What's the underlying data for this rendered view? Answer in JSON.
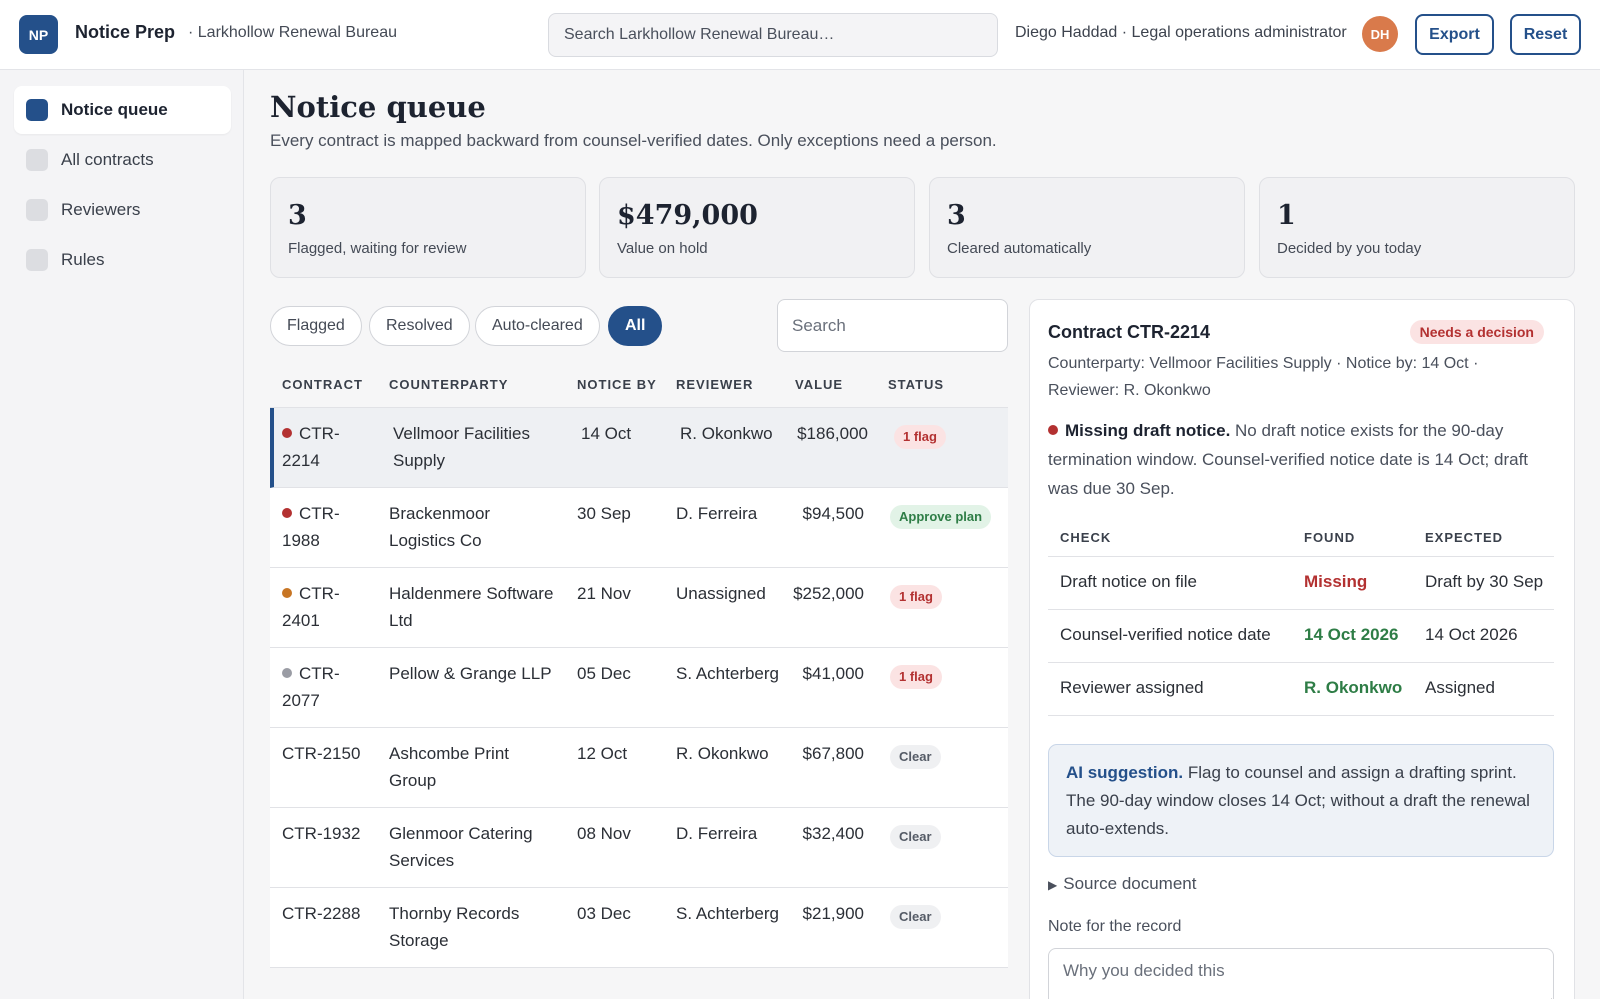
{
  "header": {
    "logo_initials": "NP",
    "app_name": "Notice Prep",
    "org_name": "· Larkhollow Renewal Bureau",
    "search_placeholder": "Search Larkhollow Renewal Bureau…",
    "user_line": "Diego Haddad · Legal operations administrator",
    "avatar_initials": "DH",
    "export_label": "Export",
    "reset_label": "Reset"
  },
  "sidebar": {
    "items": [
      {
        "label": "Notice queue",
        "active": true
      },
      {
        "label": "All contracts",
        "active": false
      },
      {
        "label": "Reviewers",
        "active": false
      },
      {
        "label": "Rules",
        "active": false
      }
    ]
  },
  "main": {
    "title": "Notice queue",
    "subtitle": "Every contract is mapped backward from counsel-verified dates. Only exceptions need a person.",
    "stats": [
      {
        "value": "3",
        "label": "Flagged, waiting for review"
      },
      {
        "value": "$479,000",
        "label": "Value on hold"
      },
      {
        "value": "3",
        "label": "Cleared automatically"
      },
      {
        "value": "1",
        "label": "Decided by you today"
      }
    ],
    "filters": [
      {
        "label": "Flagged",
        "active": false
      },
      {
        "label": "Resolved",
        "active": false
      },
      {
        "label": "Auto-cleared",
        "active": false
      },
      {
        "label": "All",
        "active": true
      }
    ],
    "table_search_placeholder": "Search"
  },
  "table": {
    "columns": [
      "Contract",
      "Counterparty",
      "Notice by",
      "Reviewer",
      "Value",
      "Status"
    ],
    "rows": [
      {
        "contract": "CTR-2214",
        "dot": "#b33131",
        "counterparty": "Vellmoor Facilities Supply",
        "notice": "14 Oct",
        "reviewer": "R. Okonkwo",
        "value": "$186,000",
        "status": "1 flag",
        "status_type": "flag",
        "selected": true
      },
      {
        "contract": "CTR-1988",
        "dot": "#b33131",
        "counterparty": "Brackenmoor Logistics Co",
        "notice": "30 Sep",
        "reviewer": "D. Ferreira",
        "value": "$94,500",
        "status": "Approve plan",
        "status_type": "approve",
        "selected": false
      },
      {
        "contract": "CTR-2401",
        "dot": "#c77524",
        "counterparty": "Haldenmere Software Ltd",
        "notice": "21 Nov",
        "reviewer": "Unassigned",
        "value": "$252,000",
        "status": "1 flag",
        "status_type": "flag",
        "selected": false
      },
      {
        "contract": "CTR-2077",
        "dot": "#9a9ca4",
        "counterparty": "Pellow & Grange LLP",
        "notice": "05 Dec",
        "reviewer": "S. Achterberg",
        "value": "$41,000",
        "status": "1 flag",
        "status_type": "flag",
        "selected": false
      },
      {
        "contract": "CTR-2150",
        "dot": "",
        "counterparty": "Ashcombe Print Group",
        "notice": "12 Oct",
        "reviewer": "R. Okonkwo",
        "value": "$67,800",
        "status": "Clear",
        "status_type": "clear",
        "selected": false
      },
      {
        "contract": "CTR-1932",
        "dot": "",
        "counterparty": "Glenmoor Catering Services",
        "notice": "08 Nov",
        "reviewer": "D. Ferreira",
        "value": "$32,400",
        "status": "Clear",
        "status_type": "clear",
        "selected": false
      },
      {
        "contract": "CTR-2288",
        "dot": "",
        "counterparty": "Thornby Records Storage",
        "notice": "03 Dec",
        "reviewer": "S. Achterberg",
        "value": "$21,900",
        "status": "Clear",
        "status_type": "clear",
        "selected": false
      }
    ]
  },
  "detail": {
    "title": "Contract CTR-2214",
    "badge": "Needs a decision",
    "meta": "Counterparty: Vellmoor Facilities Supply · Notice by: 14 Oct · Reviewer: R. Okonkwo",
    "issue_title": "Missing draft notice.",
    "issue_text": " No draft notice exists for the 90-day termination window. Counsel-verified notice date is 14 Oct; draft was due 30 Sep.",
    "issue_dot_color": "#b33131",
    "check_columns": [
      "CHECK",
      "FOUND",
      "EXPECTED"
    ],
    "checks": [
      {
        "check": "Draft notice on file",
        "found": "Missing",
        "found_ok": false,
        "expected": "Draft by 30 Sep"
      },
      {
        "check": "Counsel-verified notice date",
        "found": "14 Oct 2026",
        "found_ok": true,
        "expected": "14 Oct 2026"
      },
      {
        "check": "Reviewer assigned",
        "found": "R. Okonkwo",
        "found_ok": true,
        "expected": "Assigned"
      }
    ],
    "ai_label": "AI suggestion.",
    "ai_text": " Flag to counsel and assign a drafting sprint. The 90-day window closes 14 Oct; without a draft the renewal auto-extends.",
    "source_label": "Source document",
    "note_label": "Note for the record",
    "note_placeholder": "Why you decided this"
  },
  "colors": {
    "accent": "#24508a",
    "flag": "#b33131",
    "ok": "#2e7d46",
    "avatar": "#d97a4b"
  }
}
